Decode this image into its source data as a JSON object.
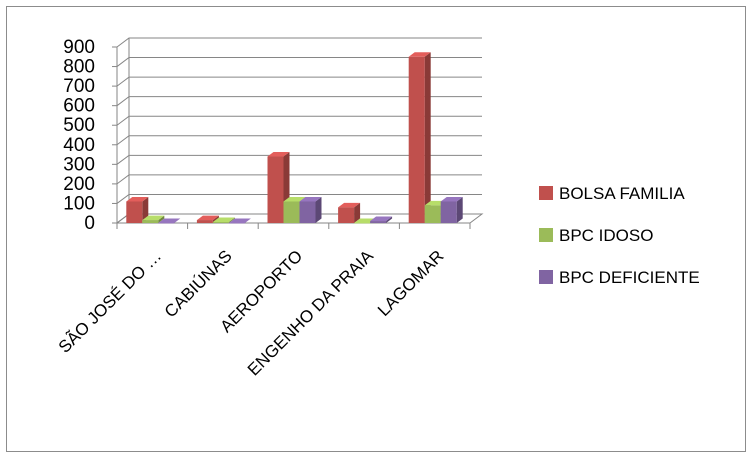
{
  "chart_data": {
    "type": "bar",
    "categories": [
      "SÃO JOSÉ DO …",
      "CABIÚNAS",
      "AEROPORTO",
      "ENGENHO DA PRAIA",
      "LAGOMAR"
    ],
    "series": [
      {
        "name": "BOLSA FAMILIA",
        "values": [
          110,
          15,
          340,
          80,
          850
        ],
        "color": "#c0504d"
      },
      {
        "name": "BPC IDOSO",
        "values": [
          15,
          5,
          110,
          0,
          90
        ],
        "color": "#9bbb59"
      },
      {
        "name": "BPC DEFICIENTE",
        "values": [
          0,
          0,
          110,
          10,
          110
        ],
        "color": "#8064a2"
      }
    ],
    "yticks": [
      "900",
      "800",
      "700",
      "600",
      "500",
      "400",
      "300",
      "200",
      "100",
      "0"
    ],
    "ylim": [
      0,
      900
    ],
    "title": "",
    "xlabel": "",
    "ylabel": "",
    "grid": true,
    "legend_position": "right"
  }
}
